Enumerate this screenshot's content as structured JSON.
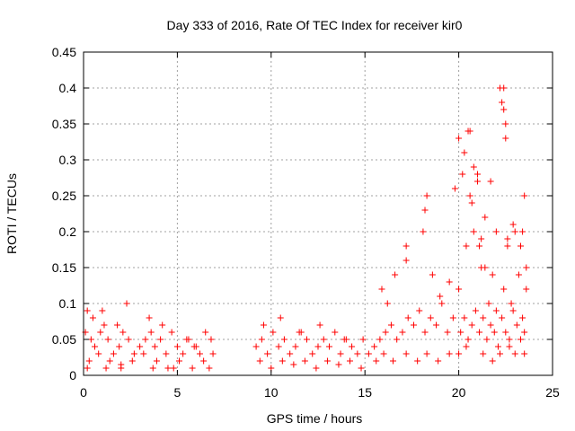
{
  "chart_data": {
    "type": "scatter",
    "title": "Day 333 of 2016, Rate Of TEC Index for receiver kir0",
    "xlabel": "GPS time / hours",
    "ylabel": "ROTI / TECUs",
    "xlim": [
      0,
      25
    ],
    "ylim": [
      0,
      0.45
    ],
    "x_ticks": [
      "0",
      "5",
      "10",
      "15",
      "20",
      "25"
    ],
    "y_ticks": [
      "0",
      "0.05",
      "0.1",
      "0.15",
      "0.2",
      "0.25",
      "0.3",
      "0.35",
      "0.4",
      "0.45"
    ],
    "grid": true,
    "marker": "+",
    "series": [
      {
        "color": "#ff0000",
        "x": [
          0.1,
          0.2,
          0.4,
          0.6,
          0.9,
          1.1,
          1.3,
          1.6,
          1.9,
          2.1,
          2.4,
          2.7,
          3.0,
          3.3,
          3.6,
          3.8,
          4.1,
          4.4,
          4.7,
          5.0,
          5.3,
          5.6,
          5.9,
          6.2,
          6.5,
          6.8,
          0.3,
          0.8,
          1.4,
          2.0,
          2.6,
          3.2,
          3.9,
          4.5,
          5.1,
          5.8,
          6.4,
          6.9,
          0.5,
          1.0,
          1.8,
          2.3,
          3.5,
          4.2,
          5.5,
          6.0,
          0.2,
          1.2,
          2.0,
          3.7,
          4.8,
          6.7,
          9.2,
          9.5,
          9.8,
          10.1,
          10.4,
          10.7,
          11.0,
          11.3,
          11.6,
          11.9,
          12.2,
          12.5,
          12.8,
          13.1,
          13.4,
          13.7,
          14.0,
          14.3,
          14.6,
          14.9,
          9.4,
          10.0,
          10.6,
          11.2,
          11.8,
          12.4,
          13.0,
          13.6,
          14.2,
          14.8,
          9.6,
          10.5,
          11.5,
          12.6,
          13.9,
          15.2,
          15.5,
          15.8,
          16.1,
          16.4,
          16.7,
          17.0,
          17.3,
          17.6,
          17.9,
          18.2,
          18.5,
          18.8,
          19.1,
          19.4,
          19.7,
          15.6,
          16.0,
          16.5,
          17.2,
          17.8,
          18.3,
          18.9,
          19.5,
          15.9,
          16.2,
          16.6,
          17.2,
          17.2,
          18.1,
          18.2,
          18.3,
          18.6,
          19.0,
          19.5,
          20.0,
          20.2,
          20.4,
          20.6,
          20.8,
          21.0,
          21.2,
          21.4,
          21.6,
          21.8,
          22.0,
          22.2,
          22.4,
          22.6,
          22.8,
          23.0,
          23.2,
          23.4,
          23.6,
          20.1,
          20.3,
          20.5,
          20.7,
          20.9,
          21.1,
          21.3,
          21.5,
          21.7,
          21.9,
          22.1,
          22.3,
          22.5,
          22.7,
          22.9,
          23.1,
          23.3,
          23.5,
          19.8,
          20.0,
          20.3,
          20.5,
          20.6,
          20.7,
          20.8,
          21.0,
          21.1,
          21.2,
          21.4,
          21.7,
          22.0,
          22.3,
          22.4,
          22.4,
          22.5,
          22.5,
          22.6,
          22.9,
          23.3,
          23.4,
          23.5,
          23.6,
          20.0,
          20.4,
          21.3,
          21.8,
          22.2,
          22.7,
          23.0,
          23.5
        ],
        "y": [
          0.06,
          0.09,
          0.05,
          0.04,
          0.06,
          0.07,
          0.05,
          0.03,
          0.04,
          0.06,
          0.05,
          0.03,
          0.04,
          0.05,
          0.06,
          0.04,
          0.05,
          0.03,
          0.06,
          0.04,
          0.03,
          0.05,
          0.04,
          0.03,
          0.06,
          0.05,
          0.02,
          0.03,
          0.02,
          0.01,
          0.02,
          0.03,
          0.02,
          0.01,
          0.02,
          0.01,
          0.02,
          0.03,
          0.08,
          0.09,
          0.07,
          0.1,
          0.08,
          0.07,
          0.05,
          0.04,
          0.01,
          0.01,
          0.015,
          0.01,
          0.01,
          0.01,
          0.04,
          0.05,
          0.03,
          0.06,
          0.04,
          0.05,
          0.03,
          0.04,
          0.06,
          0.05,
          0.03,
          0.04,
          0.05,
          0.04,
          0.06,
          0.03,
          0.05,
          0.04,
          0.03,
          0.05,
          0.02,
          0.01,
          0.02,
          0.015,
          0.02,
          0.01,
          0.02,
          0.015,
          0.02,
          0.01,
          0.07,
          0.08,
          0.06,
          0.07,
          0.05,
          0.03,
          0.04,
          0.05,
          0.06,
          0.07,
          0.05,
          0.06,
          0.08,
          0.07,
          0.09,
          0.06,
          0.08,
          0.07,
          0.1,
          0.06,
          0.08,
          0.02,
          0.03,
          0.02,
          0.03,
          0.02,
          0.03,
          0.02,
          0.03,
          0.12,
          0.1,
          0.14,
          0.16,
          0.18,
          0.2,
          0.23,
          0.25,
          0.14,
          0.11,
          0.13,
          0.12,
          0.28,
          0.18,
          0.34,
          0.2,
          0.27,
          0.15,
          0.22,
          0.1,
          0.14,
          0.09,
          0.4,
          0.12,
          0.18,
          0.1,
          0.2,
          0.14,
          0.08,
          0.12,
          0.06,
          0.08,
          0.05,
          0.07,
          0.09,
          0.06,
          0.08,
          0.05,
          0.07,
          0.06,
          0.04,
          0.08,
          0.06,
          0.05,
          0.09,
          0.07,
          0.05,
          0.06,
          0.26,
          0.33,
          0.31,
          0.34,
          0.25,
          0.24,
          0.29,
          0.28,
          0.18,
          0.19,
          0.15,
          0.27,
          0.2,
          0.38,
          0.37,
          0.4,
          0.35,
          0.33,
          0.19,
          0.21,
          0.18,
          0.2,
          0.25,
          0.15,
          0.03,
          0.04,
          0.03,
          0.02,
          0.03,
          0.04,
          0.03,
          0.03
        ]
      }
    ]
  }
}
